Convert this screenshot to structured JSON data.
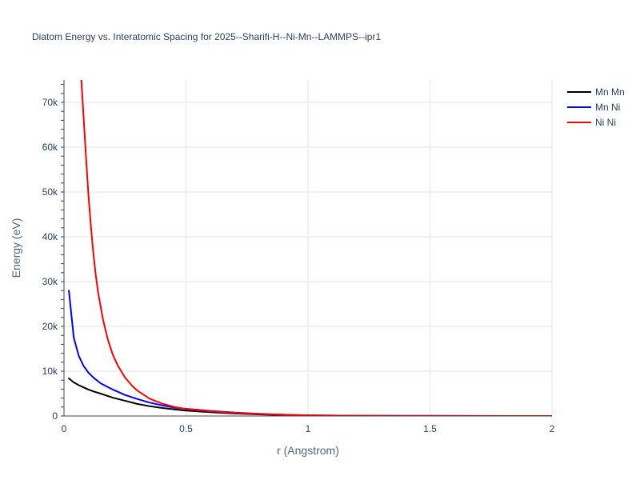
{
  "chart_data": {
    "type": "line",
    "title": "Diatom Energy vs. Interatomic Spacing for 2025--Sharifi-H--Ni-Mn--LAMMPS--ipr1",
    "xlabel": "r (Angstrom)",
    "ylabel": "Energy (eV)",
    "xlim": [
      0,
      2
    ],
    "ylim": [
      0,
      75000
    ],
    "x_ticks": [
      {
        "value": 0,
        "label": "0"
      },
      {
        "value": 0.5,
        "label": "0.5"
      },
      {
        "value": 1,
        "label": "1"
      },
      {
        "value": 1.5,
        "label": "1.5"
      },
      {
        "value": 2,
        "label": "2"
      }
    ],
    "y_ticks": [
      {
        "value": 0,
        "label": "0"
      },
      {
        "value": 10000,
        "label": "10k"
      },
      {
        "value": 20000,
        "label": "20k"
      },
      {
        "value": 30000,
        "label": "30k"
      },
      {
        "value": 40000,
        "label": "40k"
      },
      {
        "value": 50000,
        "label": "50k"
      },
      {
        "value": 60000,
        "label": "60k"
      },
      {
        "value": 70000,
        "label": "70k"
      }
    ],
    "grid": true,
    "legend_position": "top-right",
    "series": [
      {
        "name": "Mn Mn",
        "color": "#000000",
        "x": [
          0.02,
          0.04,
          0.06,
          0.08,
          0.1,
          0.12,
          0.15,
          0.2,
          0.25,
          0.3,
          0.35,
          0.4,
          0.45,
          0.5,
          0.6,
          0.7,
          0.8,
          0.9,
          1.0,
          1.2,
          1.5,
          2.0
        ],
        "y": [
          8400,
          7500,
          6900,
          6400,
          5900,
          5500,
          5000,
          4100,
          3400,
          2700,
          2200,
          1800,
          1500,
          1200,
          850,
          550,
          350,
          200,
          100,
          40,
          15,
          5
        ]
      },
      {
        "name": "Mn Ni",
        "color": "#0000ff",
        "x": [
          0.02,
          0.04,
          0.06,
          0.08,
          0.1,
          0.12,
          0.15,
          0.2,
          0.25,
          0.3,
          0.35,
          0.4,
          0.45,
          0.5,
          0.6,
          0.7,
          0.8,
          0.9,
          1.0,
          1.2,
          1.5,
          2.0
        ],
        "y": [
          28000,
          17500,
          13500,
          11200,
          9700,
          8600,
          7300,
          5900,
          4700,
          3800,
          3000,
          2400,
          1900,
          1600,
          1150,
          750,
          480,
          280,
          150,
          50,
          15,
          5
        ]
      },
      {
        "name": "Ni Ni",
        "color": "#ff0000",
        "x": [
          0.07,
          0.08,
          0.09,
          0.1,
          0.11,
          0.12,
          0.13,
          0.14,
          0.16,
          0.18,
          0.2,
          0.22,
          0.25,
          0.28,
          0.3,
          0.35,
          0.4,
          0.45,
          0.5,
          0.6,
          0.7,
          0.8,
          0.9,
          1.0,
          1.2,
          1.5,
          2.0
        ],
        "y": [
          76000,
          67000,
          58000,
          49500,
          42500,
          36500,
          31500,
          27500,
          21500,
          17000,
          13700,
          11300,
          8600,
          6700,
          5700,
          3900,
          2800,
          2050,
          1550,
          1050,
          700,
          450,
          280,
          160,
          60,
          20,
          5
        ]
      }
    ]
  }
}
